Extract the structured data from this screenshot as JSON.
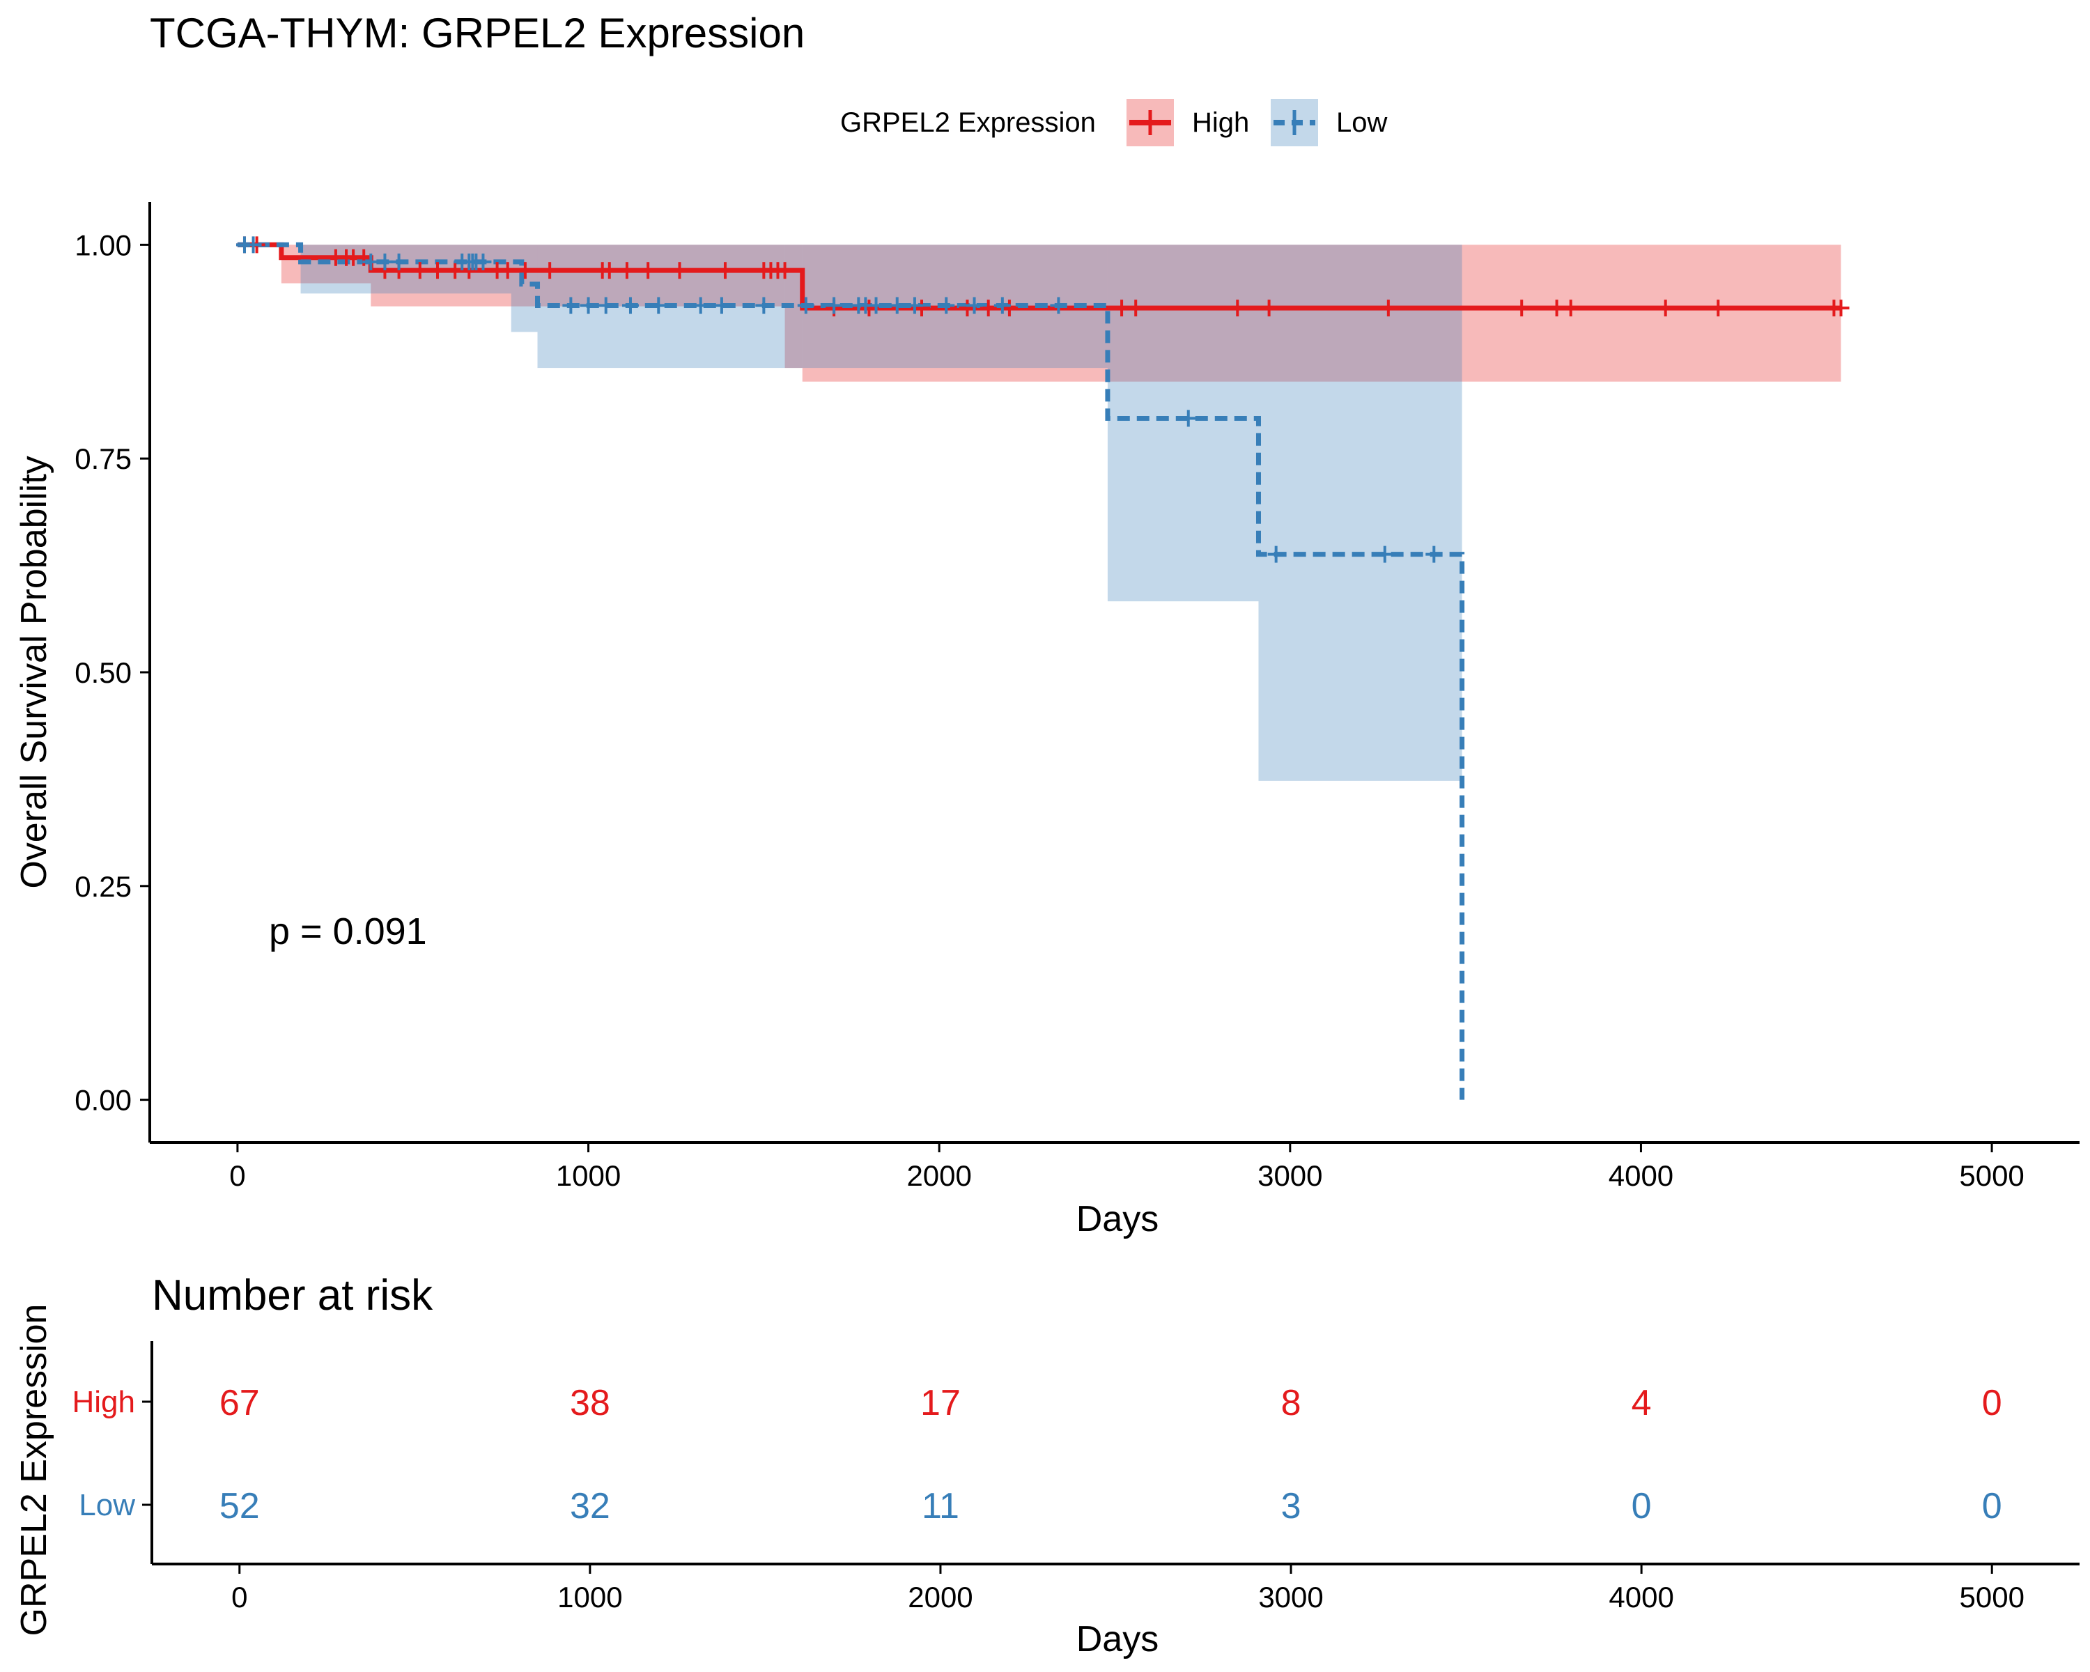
{
  "chart_data": [
    {
      "type": "line",
      "subtype": "kaplan-meier",
      "title": "TCGA-THYM: GRPEL2 Expression",
      "xlabel": "Days",
      "ylabel": "Overall Survival Probability",
      "xlim": [
        -250,
        5250
      ],
      "ylim": [
        -0.05,
        1.05
      ],
      "x_ticks": [
        "0",
        "1000",
        "2000",
        "3000",
        "4000",
        "5000"
      ],
      "y_ticks": [
        "0.00",
        "0.25",
        "0.50",
        "0.75",
        "1.00"
      ],
      "grid": false,
      "legend": {
        "title": "GRPEL2 Expression",
        "position": "top"
      },
      "annotation": "p = 0.091",
      "series": [
        {
          "name": "High",
          "color": "#e41a1c",
          "line_style": "solid",
          "steps": [
            [
              0,
              1.0
            ],
            [
              125,
              0.985
            ],
            [
              380,
              0.97
            ],
            [
              1610,
              0.926
            ],
            [
              4570,
              0.926
            ]
          ],
          "ci": [
            {
              "x0": 125,
              "x1": 380,
              "lo": 0.955,
              "hi": 1.0
            },
            {
              "x0": 380,
              "x1": 1560,
              "lo": 0.928,
              "hi": 1.0
            },
            {
              "x0": 1560,
              "x1": 1610,
              "lo": 0.856,
              "hi": 1.0
            },
            {
              "x0": 1610,
              "x1": 4570,
              "lo": 0.84,
              "hi": 1.0
            }
          ],
          "censor_x": [
            20,
            55,
            280,
            310,
            330,
            360,
            420,
            460,
            520,
            570,
            620,
            660,
            740,
            770,
            820,
            890,
            1040,
            1060,
            1110,
            1170,
            1260,
            1390,
            1500,
            1520,
            1540,
            1560,
            1700,
            1800,
            1950,
            2080,
            2140,
            2200,
            2520,
            2560,
            2850,
            2940,
            3280,
            3660,
            3760,
            3800,
            4070,
            4220,
            4550,
            4570
          ]
        },
        {
          "name": "Low",
          "color": "#377eb8",
          "line_style": "dashed",
          "steps": [
            [
              0,
              1.0
            ],
            [
              180,
              0.98
            ],
            [
              810,
              0.954
            ],
            [
              855,
              0.929
            ],
            [
              2480,
              0.797
            ],
            [
              2910,
              0.638
            ],
            [
              3490,
              0.0
            ]
          ],
          "ci": [
            {
              "x0": 180,
              "x1": 780,
              "lo": 0.943,
              "hi": 1.0
            },
            {
              "x0": 780,
              "x1": 855,
              "lo": 0.898,
              "hi": 1.0
            },
            {
              "x0": 855,
              "x1": 2480,
              "lo": 0.856,
              "hi": 1.0
            },
            {
              "x0": 2480,
              "x1": 2910,
              "lo": 0.583,
              "hi": 1.0
            },
            {
              "x0": 2910,
              "x1": 3490,
              "lo": 0.373,
              "hi": 1.0
            }
          ],
          "censor_x": [
            20,
            45,
            380,
            420,
            460,
            640,
            660,
            670,
            680,
            700,
            950,
            1000,
            1050,
            1120,
            1200,
            1320,
            1380,
            1500,
            1620,
            1700,
            1770,
            1790,
            1820,
            1880,
            1930,
            2020,
            2100,
            2180,
            2340,
            2710,
            2960,
            3270,
            3410
          ]
        }
      ]
    },
    {
      "type": "table",
      "title": "Number at risk",
      "xlabel": "Days",
      "ylabel": "GRPEL2 Expression",
      "xlim": [
        -250,
        5250
      ],
      "x": [
        0,
        1000,
        2000,
        3000,
        4000,
        5000
      ],
      "x_ticks": [
        "0",
        "1000",
        "2000",
        "3000",
        "4000",
        "5000"
      ],
      "rows": [
        {
          "name": "High",
          "color": "#e41a1c",
          "values": [
            "67",
            "38",
            "17",
            "8",
            "4",
            "0"
          ]
        },
        {
          "name": "Low",
          "color": "#377eb8",
          "values": [
            "52",
            "32",
            "11",
            "3",
            "0",
            "0"
          ]
        }
      ]
    }
  ]
}
